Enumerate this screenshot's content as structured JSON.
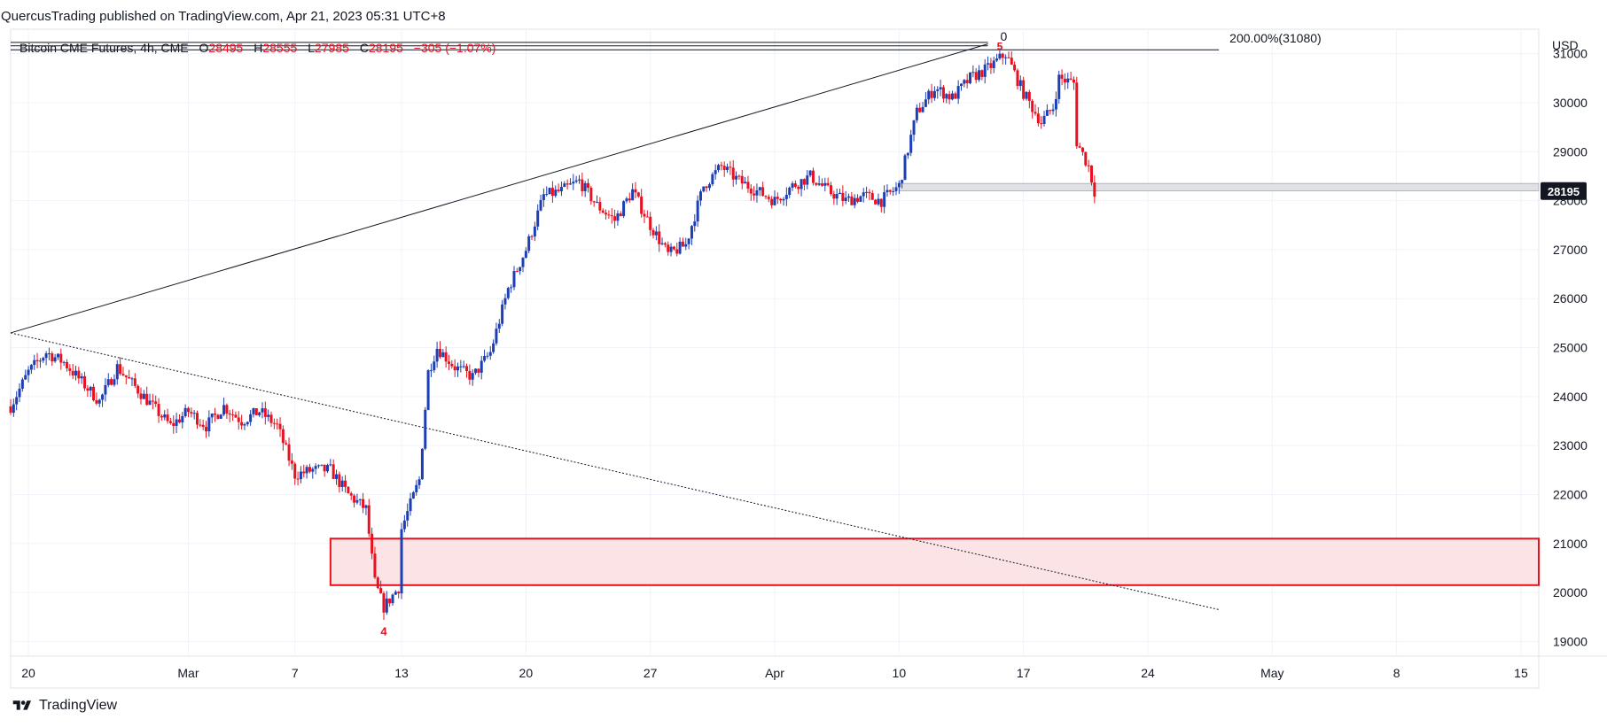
{
  "publisher": {
    "text": "QuercusTrading published on TradingView.com, Apr 21, 2023 05:31 UTC+8"
  },
  "legend": {
    "symbol": "Bitcoin CME Futures, 4h, CME",
    "open_label": "O",
    "open": "28495",
    "high_label": "H",
    "high": "28555",
    "low_label": "L",
    "low": "27985",
    "close_label": "C",
    "close": "28195",
    "change": "−305 (−1.07%)"
  },
  "currency": "USD",
  "last_price_label": "28195",
  "footer": {
    "brand": "TradingView"
  },
  "colors": {
    "up": "#1e3fb4",
    "down": "#e8111f",
    "zone_fill": "#fce4e6",
    "zone_border": "#e8111f",
    "price_tag_bg": "#131722",
    "grid": "#f0f3fa",
    "text": "#131722",
    "axis_text": "#131722"
  },
  "chart_data": {
    "type": "candlestick",
    "interval": "4h",
    "x_start_date": "2023-02-19",
    "x_end_date": "2023-05-16",
    "y_range": [
      18700,
      31500
    ],
    "y_ticks": [
      19000,
      20000,
      21000,
      22000,
      23000,
      24000,
      25000,
      26000,
      27000,
      28000,
      29000,
      30000,
      31000
    ],
    "x_ticks": [
      {
        "date": "2023-02-20",
        "label": "20"
      },
      {
        "date": "2023-03-01",
        "label": "Mar"
      },
      {
        "date": "2023-03-07",
        "label": "7"
      },
      {
        "date": "2023-03-13",
        "label": "13"
      },
      {
        "date": "2023-03-20",
        "label": "20"
      },
      {
        "date": "2023-03-27",
        "label": "27"
      },
      {
        "date": "2023-04-03",
        "label": "Apr"
      },
      {
        "date": "2023-04-10",
        "label": "10"
      },
      {
        "date": "2023-04-17",
        "label": "17"
      },
      {
        "date": "2023-04-24",
        "label": "24"
      },
      {
        "date": "2023-05-01",
        "label": "May"
      },
      {
        "date": "2023-05-08",
        "label": "8"
      },
      {
        "date": "2023-05-15",
        "label": "15"
      }
    ],
    "close_path": [
      [
        "2023-02-19",
        23800
      ],
      [
        "2023-02-20",
        24500
      ],
      [
        "2023-02-21",
        24900
      ],
      [
        "2023-02-22",
        24700
      ],
      [
        "2023-02-23",
        24300
      ],
      [
        "2023-02-24",
        23900
      ],
      [
        "2023-02-25",
        24600
      ],
      [
        "2023-02-26",
        24200
      ],
      [
        "2023-02-27",
        23800
      ],
      [
        "2023-02-28",
        23400
      ],
      [
        "2023-03-01",
        23700
      ],
      [
        "2023-03-02",
        23400
      ],
      [
        "2023-03-03",
        23800
      ],
      [
        "2023-03-04",
        23500
      ],
      [
        "2023-03-05",
        23700
      ],
      [
        "2023-03-06",
        23400
      ],
      [
        "2023-03-07",
        22400
      ],
      [
        "2023-03-08",
        22500
      ],
      [
        "2023-03-09",
        22500
      ],
      [
        "2023-03-10",
        22000
      ],
      [
        "2023-03-11",
        21700
      ],
      [
        "2023-03-11T12",
        20200
      ],
      [
        "2023-03-12",
        19700
      ],
      [
        "2023-03-12T20",
        20100
      ],
      [
        "2023-03-13",
        21300
      ],
      [
        "2023-03-14",
        22300
      ],
      [
        "2023-03-14T12",
        24500
      ],
      [
        "2023-03-15",
        25000
      ],
      [
        "2023-03-16",
        24600
      ],
      [
        "2023-03-17",
        24400
      ],
      [
        "2023-03-18",
        24900
      ],
      [
        "2023-03-19",
        26200
      ],
      [
        "2023-03-20",
        27000
      ],
      [
        "2023-03-21",
        28100
      ],
      [
        "2023-03-22",
        28200
      ],
      [
        "2023-03-23",
        28400
      ],
      [
        "2023-03-24",
        27900
      ],
      [
        "2023-03-25",
        27600
      ],
      [
        "2023-03-26",
        28200
      ],
      [
        "2023-03-27",
        27500
      ],
      [
        "2023-03-28",
        26900
      ],
      [
        "2023-03-29",
        27100
      ],
      [
        "2023-03-30",
        28300
      ],
      [
        "2023-03-31",
        28700
      ],
      [
        "2023-04-01",
        28400
      ],
      [
        "2023-04-02",
        28200
      ],
      [
        "2023-04-03",
        28000
      ],
      [
        "2023-04-04",
        28300
      ],
      [
        "2023-04-05",
        28500
      ],
      [
        "2023-04-06",
        28200
      ],
      [
        "2023-04-07",
        28000
      ],
      [
        "2023-04-08",
        28100
      ],
      [
        "2023-04-09",
        28000
      ],
      [
        "2023-04-10",
        28300
      ],
      [
        "2023-04-11",
        29800
      ],
      [
        "2023-04-12",
        30300
      ],
      [
        "2023-04-13",
        30100
      ],
      [
        "2023-04-14",
        30500
      ],
      [
        "2023-04-15",
        30700
      ],
      [
        "2023-04-16",
        31000
      ],
      [
        "2023-04-17",
        30200
      ],
      [
        "2023-04-18",
        29600
      ],
      [
        "2023-04-18T16",
        29900
      ],
      [
        "2023-04-19",
        30500
      ],
      [
        "2023-04-19T20",
        30400
      ],
      [
        "2023-04-20",
        29200
      ],
      [
        "2023-04-20T16",
        28700
      ],
      [
        "2023-04-21",
        28195
      ]
    ],
    "annotations": {
      "demand_zone": {
        "y_top": 21100,
        "y_bottom": 20150,
        "x_start": "2023-03-09",
        "x_end": "2023-05-16"
      },
      "support_band": {
        "y_top": 28350,
        "y_bottom": 28200,
        "x_start": "2023-04-10",
        "x_end": "2023-05-16"
      },
      "rising_trendline": {
        "from": [
          "2023-02-19",
          25300
        ],
        "to": [
          "2023-04-15",
          31200
        ]
      },
      "dotted_trendline": {
        "from": [
          "2023-02-19",
          25300
        ],
        "to": [
          "2023-04-28",
          19650
        ]
      },
      "fib_lines": {
        "levels": [
          31230,
          31160,
          31080
        ],
        "x_start": "2023-02-19",
        "x_end": "2023-04-15",
        "x_extend": "2023-04-28"
      },
      "fib_label": "200.00%(31080)",
      "fib_zero_label": "0",
      "wave_label_low": "4",
      "wave_label_high": "5"
    }
  }
}
